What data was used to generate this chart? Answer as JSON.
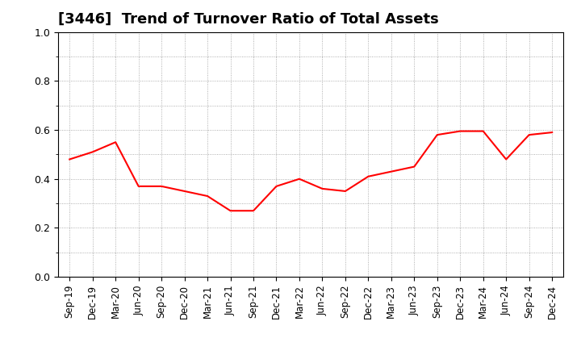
{
  "title": "[3446]  Trend of Turnover Ratio of Total Assets",
  "x_labels": [
    "Sep-19",
    "Dec-19",
    "Mar-20",
    "Jun-20",
    "Sep-20",
    "Dec-20",
    "Mar-21",
    "Jun-21",
    "Sep-21",
    "Dec-21",
    "Mar-22",
    "Jun-22",
    "Sep-22",
    "Dec-22",
    "Mar-23",
    "Jun-23",
    "Sep-23",
    "Dec-23",
    "Mar-24",
    "Jun-24",
    "Sep-24",
    "Dec-24"
  ],
  "y_values": [
    0.48,
    0.51,
    0.55,
    0.37,
    0.37,
    0.35,
    0.33,
    0.27,
    0.27,
    0.37,
    0.4,
    0.36,
    0.35,
    0.41,
    0.43,
    0.45,
    0.58,
    0.595,
    0.595,
    0.48,
    0.58,
    0.59
  ],
  "line_color": "#ff0000",
  "line_width": 1.5,
  "ylim": [
    0.0,
    1.0
  ],
  "yticks": [
    0.0,
    0.2,
    0.4,
    0.6,
    0.8,
    1.0
  ],
  "grid_color": "#999999",
  "bg_color": "#ffffff",
  "title_fontsize": 13,
  "tick_fontsize": 8.5
}
